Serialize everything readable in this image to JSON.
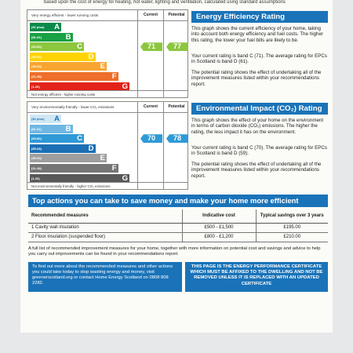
{
  "header": {
    "intro_text": "based upon the cost of energy for heating, hot water, lighting and ventilation, calculated using standard assumptions"
  },
  "energy_chart": {
    "top_label": "Very energy efficient - lower running costs",
    "bottom_label": "Not energy efficient - higher running costs",
    "col_current": "Current",
    "col_potential": "Potential",
    "bands": [
      {
        "range": "(92 plus)",
        "letter": "A",
        "color": "#0a8a4a"
      },
      {
        "range": "(81-91)",
        "letter": "B",
        "color": "#1aa045"
      },
      {
        "range": "(69-80)",
        "letter": "C",
        "color": "#8dc63f"
      },
      {
        "range": "(55-68)",
        "letter": "D",
        "color": "#ffd300"
      },
      {
        "range": "(39-54)",
        "letter": "E",
        "color": "#f7a530"
      },
      {
        "range": "(21-38)",
        "letter": "F",
        "color": "#ee6e2a"
      },
      {
        "range": "(1-20)",
        "letter": "G",
        "color": "#e2231a"
      }
    ],
    "current": {
      "value": "71",
      "band_index": 2,
      "color": "#8dc63f"
    },
    "potential": {
      "value": "77",
      "band_index": 2,
      "color": "#8dc63f"
    }
  },
  "impact_chart": {
    "top_label": "Very environmentally friendly - lower CO₂ emissions",
    "bottom_label": "Not environmentally friendly - higher CO₂ emissions",
    "col_current": "Current",
    "col_potential": "Potential",
    "bands": [
      {
        "range": "(92 plus)",
        "letter": "A",
        "color": "#cfe8f5"
      },
      {
        "range": "(81-91)",
        "letter": "B",
        "color": "#6fb7e2"
      },
      {
        "range": "(69-80)",
        "letter": "C",
        "color": "#2f9ad6"
      },
      {
        "range": "(55-68)",
        "letter": "D",
        "color": "#1c6fb4"
      },
      {
        "range": "(39-54)",
        "letter": "E",
        "color": "#9e9e9e"
      },
      {
        "range": "(21-38)",
        "letter": "F",
        "color": "#757575"
      },
      {
        "range": "(1-20)",
        "letter": "G",
        "color": "#595959"
      }
    ],
    "current": {
      "value": "70",
      "band_index": 2,
      "color": "#2f9ad6"
    },
    "potential": {
      "value": "78",
      "band_index": 2,
      "color": "#2f9ad6"
    }
  },
  "energy_rating": {
    "title": "Energy Efficiency Rating",
    "p1": "This graph shows the current efficiency of your home, taking into account both energy efficiency and fuel costs. The higher this rating, the lower your fuel bills are likely to be.",
    "p2": "Your current rating is band C (71). The average rating for EPCs in Scotland is band D (61).",
    "p3": "The potential rating shows the effect of undertaking all of the improvement measures listed within your recommendations report."
  },
  "environmental_impact": {
    "title": "Environmental Impact (CO₂) Rating",
    "p1": "This graph shows the effect of your home on the environment in terms of carbon dioxide (CO₂) emissions. The higher the rating, the less impact it has on the environment.",
    "p2": "Your current rating is band C (70). The average rating for EPCs in Scotland is band D (59).",
    "p3": "The potential rating shows the effect of undertaking all of the improvement measures listed within your recommendations report."
  },
  "top_actions": {
    "title": "Top actions you can take to save money and make your home more efficient",
    "headers": {
      "measure": "Recommended measures",
      "cost": "Indicative cost",
      "savings": "Typical savings over 3 years"
    },
    "rows": [
      {
        "measure": "1 Cavity wall insulation",
        "cost": "£500 - £1,500",
        "savings": "£195.00"
      },
      {
        "measure": "2 Floor insulation (suspended floor)",
        "cost": "£800 - £1,200",
        "savings": "£210.00"
      }
    ]
  },
  "footer_note": "A full list of recommended improvement measures for your home, together with more information on potential cost and savings and advice to help you carry out improvements can be found in your recommendations report.",
  "help_box": "To find out more about the recommended measures and other actions you could take today to stop wasting energy and money, visit greenerscotland.org or contact Home Energy Scotland on 0808 808 2282.",
  "notice_box": "THIS PAGE IS THE ENERGY PERFORMANCE CERTIFICATE WHICH MUST BE AFFIXED TO THE DWELLING AND NOT BE REMOVED UNLESS IT IS REPLACED WITH AN UPDATED CERTIFICATE"
}
